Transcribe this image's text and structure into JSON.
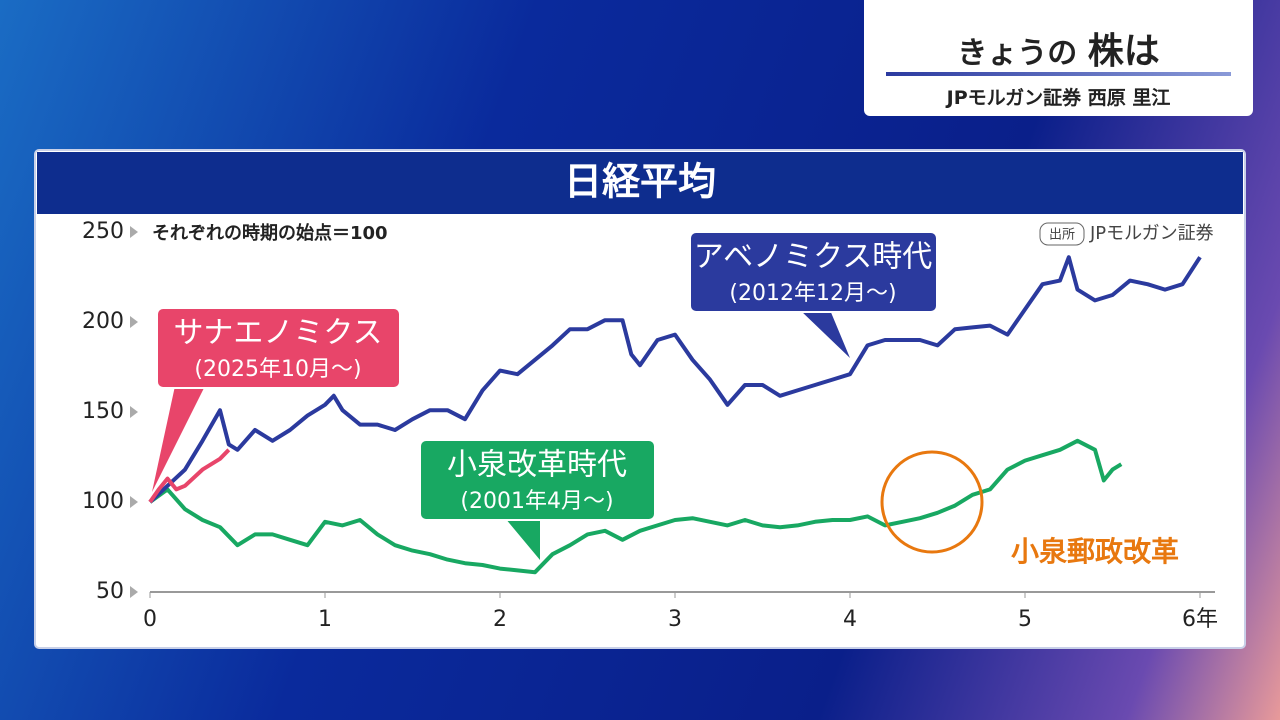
{
  "header": {
    "title_prefix": "きょうの",
    "title_main": "株は",
    "subtitle": "JPモルガン証券 西原 里江"
  },
  "chart_data": {
    "type": "line",
    "title": "日経平均",
    "subtitle": "それぞれの時期の始点＝100",
    "source_tag": "出所",
    "source": "JPモルガン証券",
    "xlim": [
      0,
      6
    ],
    "xticks": [
      0,
      1,
      2,
      3,
      4,
      5,
      {
        "value": 6,
        "label": "6年"
      }
    ],
    "ylim": [
      50,
      250
    ],
    "yticks": [
      50,
      100,
      150,
      200,
      250
    ],
    "grid": false,
    "annotations": [
      {
        "text": "小泉郵政改革",
        "color": "#e8780f"
      }
    ],
    "series": [
      {
        "name": "アベノミクス時代",
        "period": "(2012年12月～)",
        "color": "#2b3a9e",
        "x": [
          0,
          0.1,
          0.2,
          0.3,
          0.4,
          0.45,
          0.5,
          0.6,
          0.7,
          0.8,
          0.9,
          1.0,
          1.05,
          1.1,
          1.2,
          1.3,
          1.4,
          1.5,
          1.6,
          1.7,
          1.8,
          1.9,
          2.0,
          2.1,
          2.2,
          2.3,
          2.4,
          2.5,
          2.6,
          2.7,
          2.75,
          2.8,
          2.9,
          3.0,
          3.1,
          3.2,
          3.3,
          3.4,
          3.5,
          3.6,
          3.7,
          3.8,
          3.9,
          4.0,
          4.1,
          4.2,
          4.3,
          4.4,
          4.5,
          4.6,
          4.7,
          4.8,
          4.9,
          5.0,
          5.1,
          5.2,
          5.25,
          5.3,
          5.4,
          5.5,
          5.6,
          5.7,
          5.8,
          5.9,
          6.0
        ],
        "values": [
          100,
          109,
          118,
          134,
          151,
          132,
          129,
          140,
          134,
          140,
          148,
          154,
          159,
          151,
          143,
          143,
          140,
          146,
          151,
          151,
          146,
          162,
          173,
          171,
          179,
          187,
          196,
          196,
          201,
          201,
          182,
          176,
          190,
          193,
          179,
          168,
          154,
          165,
          165,
          159,
          162,
          165,
          168,
          171,
          187,
          190,
          190,
          190,
          187,
          196,
          197,
          198,
          193,
          207,
          221,
          223,
          236,
          218,
          212,
          215,
          223,
          221,
          218,
          221,
          236
        ]
      },
      {
        "name": "小泉改革時代",
        "period": "(2001年4月～)",
        "color": "#18a862",
        "x": [
          0,
          0.1,
          0.2,
          0.3,
          0.4,
          0.5,
          0.6,
          0.7,
          0.8,
          0.9,
          1.0,
          1.1,
          1.2,
          1.3,
          1.4,
          1.5,
          1.6,
          1.7,
          1.8,
          1.9,
          2.0,
          2.1,
          2.2,
          2.3,
          2.4,
          2.5,
          2.6,
          2.7,
          2.8,
          2.9,
          3.0,
          3.1,
          3.2,
          3.3,
          3.4,
          3.5,
          3.6,
          3.7,
          3.8,
          3.9,
          4.0,
          4.1,
          4.2,
          4.3,
          4.4,
          4.5,
          4.6,
          4.7,
          4.8,
          4.9,
          5.0,
          5.1,
          5.2,
          5.3,
          5.4,
          5.45,
          5.5,
          5.55
        ],
        "values": [
          100,
          107,
          96,
          90,
          86,
          76,
          82,
          82,
          79,
          76,
          89,
          87,
          90,
          82,
          76,
          73,
          71,
          68,
          66,
          65,
          63,
          62,
          61,
          71,
          76,
          82,
          84,
          79,
          84,
          87,
          90,
          91,
          89,
          87,
          90,
          87,
          86,
          87,
          89,
          90,
          90,
          92,
          87,
          89,
          91,
          94,
          98,
          104,
          107,
          118,
          123,
          126,
          129,
          134,
          129,
          112,
          118,
          121
        ]
      },
      {
        "name": "サナエノミクス",
        "period": "(2025年10月～)",
        "color": "#e8456a",
        "x": [
          0,
          0.05,
          0.1,
          0.15,
          0.2,
          0.3,
          0.4,
          0.45
        ],
        "values": [
          100,
          107,
          113,
          107,
          109,
          118,
          124,
          129
        ]
      }
    ]
  }
}
